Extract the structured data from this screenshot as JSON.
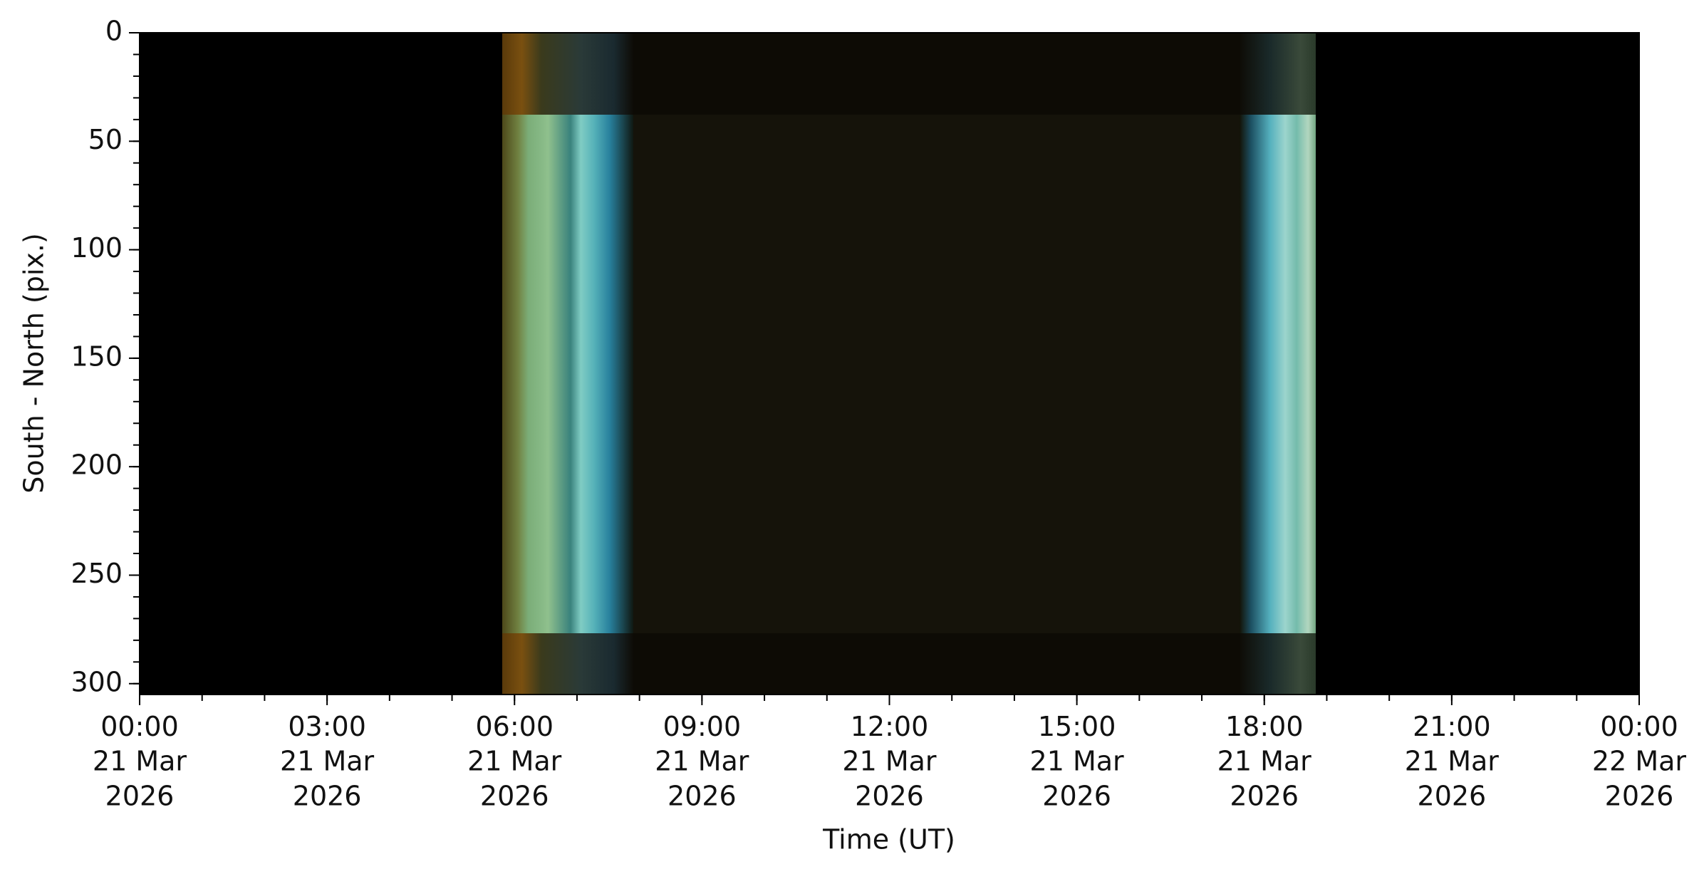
{
  "chart_data": {
    "type": "keogram",
    "xlabel": "Time (UT)",
    "ylabel": "South - North (pix.)",
    "xlim": [
      "2026-03-21T00:00",
      "2026-03-22T00:00"
    ],
    "xticks": [
      {
        "value": "2026-03-21T00:00",
        "label": "00:00\n21 Mar\n2026"
      },
      {
        "value": "2026-03-21T03:00",
        "label": "03:00\n21 Mar\n2026"
      },
      {
        "value": "2026-03-21T06:00",
        "label": "06:00\n21 Mar\n2026"
      },
      {
        "value": "2026-03-21T09:00",
        "label": "09:00\n21 Mar\n2026"
      },
      {
        "value": "2026-03-21T12:00",
        "label": "12:00\n21 Mar\n2026"
      },
      {
        "value": "2026-03-21T15:00",
        "label": "15:00\n21 Mar\n2026"
      },
      {
        "value": "2026-03-21T18:00",
        "label": "18:00\n21 Mar\n2026"
      },
      {
        "value": "2026-03-21T21:00",
        "label": "21:00\n21 Mar\n2026"
      },
      {
        "value": "2026-03-22T00:00",
        "label": "00:00\n22 Mar\n2026"
      }
    ],
    "xminor_step_minutes": 60,
    "ylim": [
      0,
      305
    ],
    "y_inverted": true,
    "yticks": [
      0,
      50,
      100,
      150,
      200,
      250,
      300
    ],
    "yminor_step": 10
  }
}
